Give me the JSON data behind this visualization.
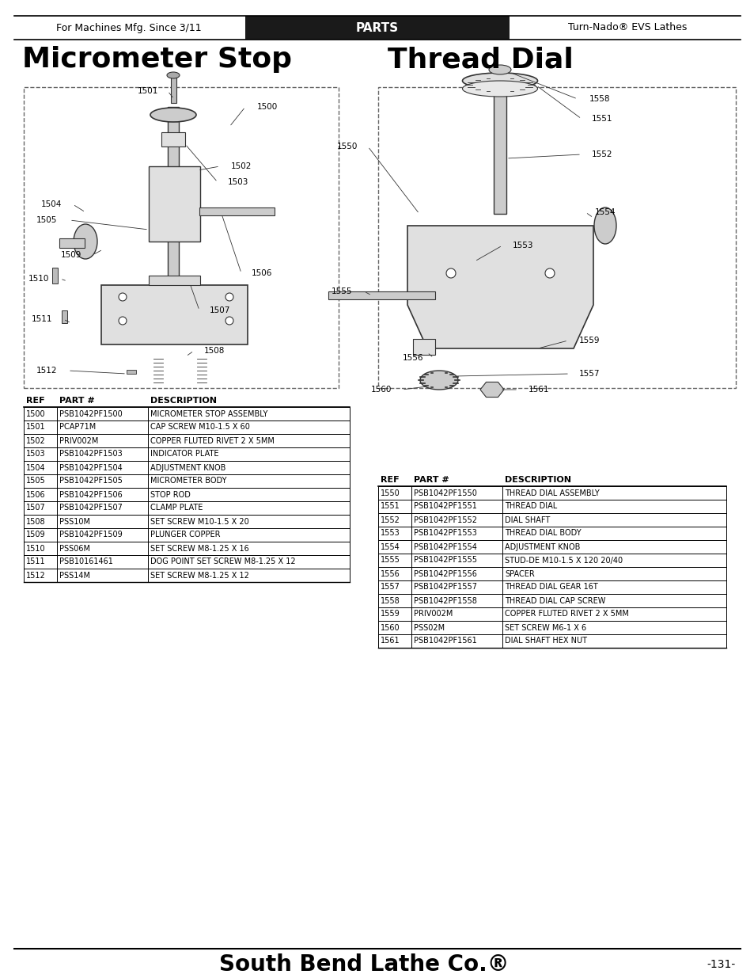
{
  "page_bg": "#ffffff",
  "header_bg": "#1a1a1a",
  "header_text_color": "#ffffff",
  "header_left": "For Machines Mfg. Since 3/11",
  "header_center": "PARTS",
  "header_right": "Turn-Nado® EVS Lathes",
  "title_left": "Micrometer Stop",
  "title_right": "Thread Dial",
  "footer_center": "South Bend Lathe Co.®",
  "footer_right": "-131-",
  "line_color": "#000000",
  "table_border_color": "#000000",
  "left_table_headers": [
    "REF",
    "PART #",
    "DESCRIPTION"
  ],
  "left_table_data": [
    [
      "1500",
      "PSB1042PF1500",
      "MICROMETER STOP ASSEMBLY"
    ],
    [
      "1501",
      "PCAP71M",
      "CAP SCREW M10-1.5 X 60"
    ],
    [
      "1502",
      "PRIV002M",
      "COPPER FLUTED RIVET 2 X 5MM"
    ],
    [
      "1503",
      "PSB1042PF1503",
      "INDICATOR PLATE"
    ],
    [
      "1504",
      "PSB1042PF1504",
      "ADJUSTMENT KNOB"
    ],
    [
      "1505",
      "PSB1042PF1505",
      "MICROMETER BODY"
    ],
    [
      "1506",
      "PSB1042PF1506",
      "STOP ROD"
    ],
    [
      "1507",
      "PSB1042PF1507",
      "CLAMP PLATE"
    ],
    [
      "1508",
      "PSS10M",
      "SET SCREW M10-1.5 X 20"
    ],
    [
      "1509",
      "PSB1042PF1509",
      "PLUNGER COPPER"
    ],
    [
      "1510",
      "PSS06M",
      "SET SCREW M8-1.25 X 16"
    ],
    [
      "1511",
      "PSB10161461",
      "DOG POINT SET SCREW M8-1.25 X 12"
    ],
    [
      "1512",
      "PSS14M",
      "SET SCREW M8-1.25 X 12"
    ]
  ],
  "right_table_headers": [
    "REF",
    "PART #",
    "DESCRIPTION"
  ],
  "right_table_data": [
    [
      "1550",
      "PSB1042PF1550",
      "THREAD DIAL ASSEMBLY"
    ],
    [
      "1551",
      "PSB1042PF1551",
      "THREAD DIAL"
    ],
    [
      "1552",
      "PSB1042PF1552",
      "DIAL SHAFT"
    ],
    [
      "1553",
      "PSB1042PF1553",
      "THREAD DIAL BODY"
    ],
    [
      "1554",
      "PSB1042PF1554",
      "ADJUSTMENT KNOB"
    ],
    [
      "1555",
      "PSB1042PF1555",
      "STUD-DE M10-1.5 X 120 20/40"
    ],
    [
      "1556",
      "PSB1042PF1556",
      "SPACER"
    ],
    [
      "1557",
      "PSB1042PF1557",
      "THREAD DIAL GEAR 16T"
    ],
    [
      "1558",
      "PSB1042PF1558",
      "THREAD DIAL CAP SCREW"
    ],
    [
      "1559",
      "PRIV002M",
      "COPPER FLUTED RIVET 2 X 5MM"
    ],
    [
      "1560",
      "PSS02M",
      "SET SCREW M6-1 X 6"
    ],
    [
      "1561",
      "PSB1042PF1561",
      "DIAL SHAFT HEX NUT"
    ]
  ]
}
